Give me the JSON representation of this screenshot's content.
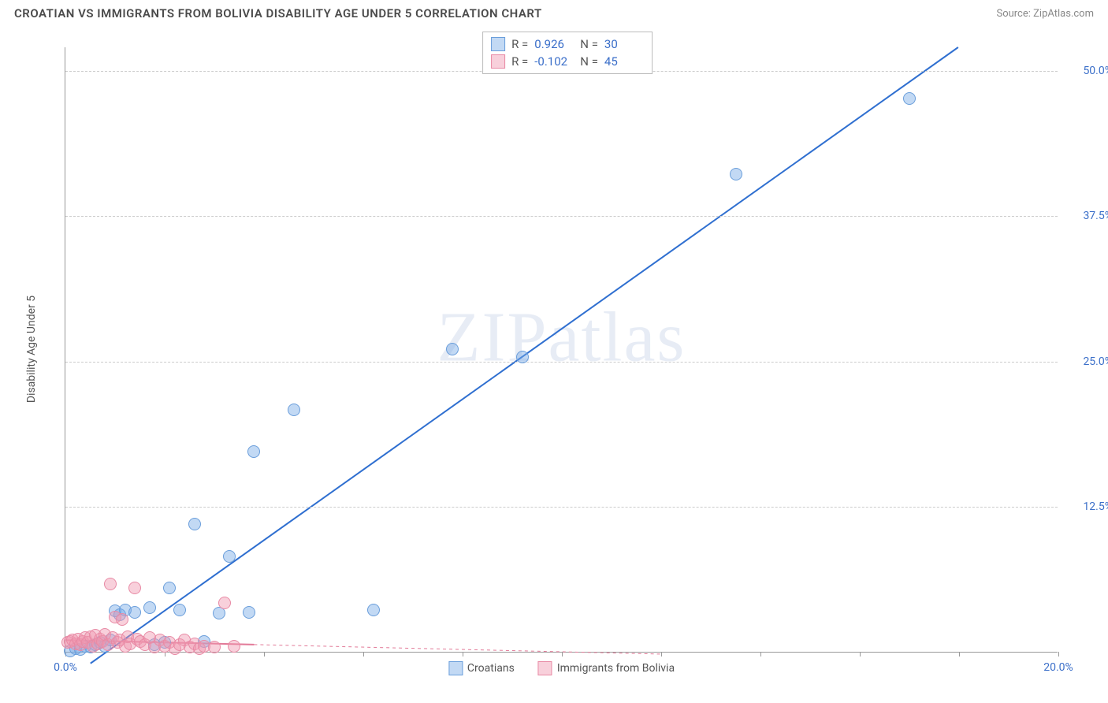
{
  "header": {
    "title": "CROATIAN VS IMMIGRANTS FROM BOLIVIA DISABILITY AGE UNDER 5 CORRELATION CHART",
    "source_prefix": "Source: ",
    "source_name": "ZipAtlas.com"
  },
  "watermark": "ZIPatlas",
  "chart": {
    "type": "scatter",
    "ylabel": "Disability Age Under 5",
    "background_color": "#ffffff",
    "grid_color": "#cccccc",
    "axis_color": "#999999",
    "tick_label_color": "#3b6fc9",
    "label_fontsize": 14,
    "xlim": [
      0,
      20
    ],
    "ylim": [
      0,
      52
    ],
    "xtick_count": 11,
    "xtick_labels": {
      "first": "0.0%",
      "last": "20.0%"
    },
    "ytick_values": [
      12.5,
      25.0,
      37.5,
      50.0
    ],
    "ytick_labels": [
      "12.5%",
      "25.0%",
      "37.5%",
      "50.0%"
    ],
    "marker_radius": 8,
    "series": {
      "croatians": {
        "label": "Croatians",
        "fill_color": "rgba(120,170,230,0.45)",
        "stroke_color": "#6a9edb",
        "line_color": "#2f6fd0",
        "line_width": 2,
        "line_dash": "none",
        "R": "0.926",
        "N": "30",
        "regression": {
          "x1": 0.5,
          "y1": -1.0,
          "x2": 18.0,
          "y2": 52.0
        },
        "points": [
          [
            0.1,
            0.1
          ],
          [
            0.2,
            0.3
          ],
          [
            0.3,
            0.2
          ],
          [
            0.4,
            0.5
          ],
          [
            0.5,
            0.4
          ],
          [
            0.6,
            0.6
          ],
          [
            0.7,
            0.8
          ],
          [
            0.8,
            0.5
          ],
          [
            0.9,
            1.0
          ],
          [
            1.0,
            3.5
          ],
          [
            1.1,
            3.2
          ],
          [
            1.2,
            3.6
          ],
          [
            1.4,
            3.4
          ],
          [
            1.7,
            3.8
          ],
          [
            1.8,
            0.6
          ],
          [
            2.0,
            0.8
          ],
          [
            2.1,
            5.5
          ],
          [
            2.3,
            3.6
          ],
          [
            2.6,
            11.0
          ],
          [
            2.8,
            0.9
          ],
          [
            3.1,
            3.3
          ],
          [
            3.3,
            8.2
          ],
          [
            3.7,
            3.4
          ],
          [
            3.8,
            17.2
          ],
          [
            4.6,
            20.8
          ],
          [
            6.2,
            3.6
          ],
          [
            7.8,
            26.0
          ],
          [
            9.2,
            25.3
          ],
          [
            13.5,
            41.0
          ],
          [
            17.0,
            47.5
          ]
        ]
      },
      "bolivia": {
        "label": "Immigrants from Bolivia",
        "fill_color": "rgba(240,150,175,0.45)",
        "stroke_color": "#e88aa5",
        "line_color": "#e27a98",
        "line_width": 2,
        "line_dash": "4 4",
        "R": "-0.102",
        "N": "45",
        "regression": {
          "x1": 0.0,
          "y1": 1.0,
          "x2": 12.0,
          "y2": -0.2
        },
        "regression_solid_until_x": 3.8,
        "points": [
          [
            0.05,
            0.8
          ],
          [
            0.1,
            0.9
          ],
          [
            0.15,
            1.0
          ],
          [
            0.2,
            0.7
          ],
          [
            0.25,
            1.1
          ],
          [
            0.3,
            0.6
          ],
          [
            0.35,
            0.9
          ],
          [
            0.4,
            1.2
          ],
          [
            0.45,
            0.8
          ],
          [
            0.5,
            1.3
          ],
          [
            0.55,
            0.5
          ],
          [
            0.6,
            1.4
          ],
          [
            0.65,
            0.7
          ],
          [
            0.7,
            1.1
          ],
          [
            0.75,
            0.9
          ],
          [
            0.8,
            1.5
          ],
          [
            0.85,
            0.6
          ],
          [
            0.9,
            5.8
          ],
          [
            0.95,
            1.2
          ],
          [
            1.0,
            3.0
          ],
          [
            1.05,
            0.8
          ],
          [
            1.1,
            1.0
          ],
          [
            1.15,
            2.8
          ],
          [
            1.2,
            0.5
          ],
          [
            1.25,
            1.3
          ],
          [
            1.3,
            0.7
          ],
          [
            1.4,
            5.5
          ],
          [
            1.45,
            1.1
          ],
          [
            1.5,
            0.9
          ],
          [
            1.6,
            0.6
          ],
          [
            1.7,
            1.2
          ],
          [
            1.8,
            0.4
          ],
          [
            1.9,
            1.0
          ],
          [
            2.0,
            0.5
          ],
          [
            2.1,
            0.8
          ],
          [
            2.2,
            0.3
          ],
          [
            2.3,
            0.6
          ],
          [
            2.4,
            1.0
          ],
          [
            2.5,
            0.4
          ],
          [
            2.6,
            0.7
          ],
          [
            2.7,
            0.3
          ],
          [
            2.8,
            0.5
          ],
          [
            3.0,
            0.4
          ],
          [
            3.2,
            4.2
          ],
          [
            3.4,
            0.5
          ]
        ]
      }
    }
  },
  "stats_box": {
    "rows": [
      {
        "swatch_fill": "rgba(120,170,230,0.45)",
        "swatch_stroke": "#6a9edb",
        "R_label": "R =",
        "R": "0.926",
        "N_label": "N =",
        "N": "30"
      },
      {
        "swatch_fill": "rgba(240,150,175,0.45)",
        "swatch_stroke": "#e88aa5",
        "R_label": "R =",
        "R": "-0.102",
        "N_label": "N =",
        "N": "45"
      }
    ]
  },
  "legend": [
    {
      "swatch_fill": "rgba(120,170,230,0.45)",
      "swatch_stroke": "#6a9edb",
      "label": "Croatians"
    },
    {
      "swatch_fill": "rgba(240,150,175,0.45)",
      "swatch_stroke": "#e88aa5",
      "label": "Immigrants from Bolivia"
    }
  ]
}
